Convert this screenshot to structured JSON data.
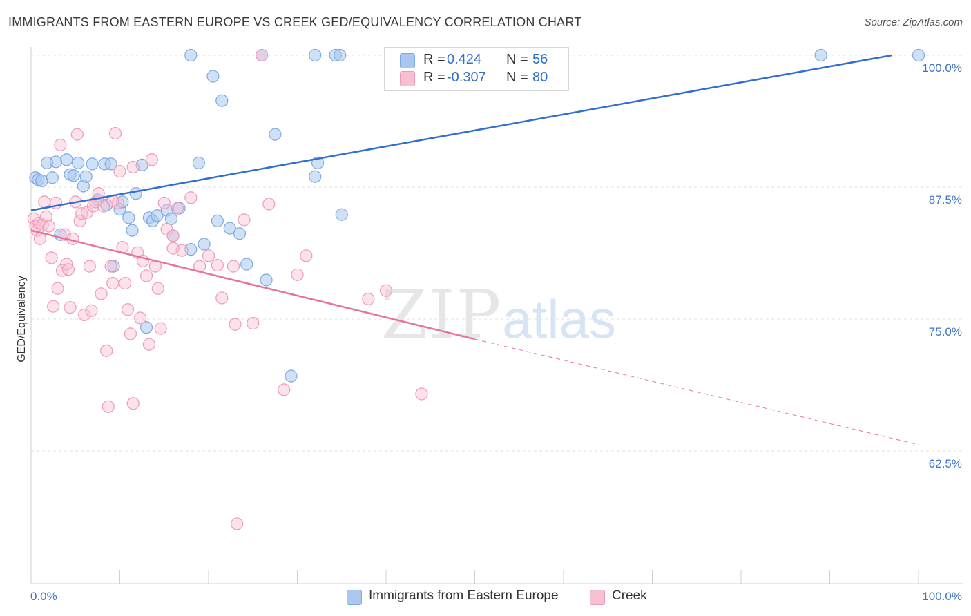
{
  "title": "IMMIGRANTS FROM EASTERN EUROPE VS CREEK GED/EQUIVALENCY CORRELATION CHART",
  "source": "Source: ZipAtlas.com",
  "watermark": {
    "zip": "ZIP",
    "atlas": "atlas"
  },
  "legend": {
    "rows": [
      {
        "r_label": "R =",
        "r_value": "0.424",
        "n_label": "N =",
        "n_value": "56"
      },
      {
        "r_label": "R =",
        "r_value": "-0.307",
        "n_label": "N =",
        "n_value": "80"
      }
    ]
  },
  "bottom_legend": [
    "Immigrants from Eastern Europe",
    "Creek"
  ],
  "colors": {
    "blue_fill": "#aac8ef",
    "blue_stroke": "#7ea9e3",
    "blue_line": "#2f6fd1",
    "pink_fill": "#f6bfd2",
    "pink_stroke": "#ef9ab8",
    "pink_line": "#e7739b",
    "axis_label": "#3d73c9",
    "grid": "#e2e2e2"
  },
  "chart_data": {
    "type": "scatter",
    "title": "IMMIGRANTS FROM EASTERN EUROPE VS CREEK GED/EQUIVALENCY CORRELATION CHART",
    "xlabel": "",
    "ylabel": "GED/Equivalency",
    "xlim": [
      0,
      100
    ],
    "ylim": [
      51.0,
      101.0
    ],
    "x_tick_labels": [
      "0.0%",
      "100.0%"
    ],
    "y_ticks": [
      62.5,
      75.0,
      87.5,
      100.0
    ],
    "y_tick_labels": [
      "62.5%",
      "75.0%",
      "87.5%",
      "100.0%"
    ],
    "grid": "horizontal dashed",
    "legend_position": "top-center",
    "series": [
      {
        "name": "Immigrants from Eastern Europe",
        "color": "#aac8ef",
        "trend": {
          "x": [
            0,
            97
          ],
          "y": [
            85.3,
            100.0
          ],
          "style": "solid"
        },
        "points": [
          [
            0.5,
            88.4
          ],
          [
            0.8,
            88.2
          ],
          [
            1.2,
            88.1
          ],
          [
            1.8,
            89.8
          ],
          [
            2.4,
            88.4
          ],
          [
            2.8,
            89.9
          ],
          [
            3.3,
            83.0
          ],
          [
            4.0,
            90.1
          ],
          [
            4.4,
            88.7
          ],
          [
            4.8,
            88.6
          ],
          [
            5.3,
            89.8
          ],
          [
            5.9,
            87.6
          ],
          [
            6.2,
            88.5
          ],
          [
            6.9,
            89.7
          ],
          [
            7.5,
            86.3
          ],
          [
            8.3,
            89.7
          ],
          [
            8.5,
            85.8
          ],
          [
            9.0,
            89.7
          ],
          [
            9.3,
            80.0
          ],
          [
            10.0,
            85.4
          ],
          [
            10.3,
            86.1
          ],
          [
            11.0,
            84.6
          ],
          [
            11.4,
            83.4
          ],
          [
            11.8,
            86.9
          ],
          [
            12.5,
            89.6
          ],
          [
            13.0,
            74.2
          ],
          [
            13.3,
            84.6
          ],
          [
            13.7,
            84.3
          ],
          [
            14.2,
            84.8
          ],
          [
            15.3,
            85.3
          ],
          [
            15.8,
            84.5
          ],
          [
            16.0,
            82.9
          ],
          [
            16.7,
            85.5
          ],
          [
            18.0,
            81.6
          ],
          [
            18.9,
            89.8
          ],
          [
            19.5,
            82.1
          ],
          [
            21.0,
            84.3
          ],
          [
            22.4,
            83.6
          ],
          [
            23.5,
            83.1
          ],
          [
            24.3,
            80.2
          ],
          [
            26.5,
            78.7
          ],
          [
            27.5,
            92.5
          ],
          [
            29.3,
            69.6
          ],
          [
            32.0,
            88.5
          ],
          [
            32.3,
            89.8
          ],
          [
            35.0,
            84.9
          ],
          [
            18.0,
            100.0
          ],
          [
            20.5,
            98.0
          ],
          [
            21.5,
            95.7
          ],
          [
            26.0,
            100.0
          ],
          [
            32.0,
            100.0
          ],
          [
            34.3,
            100.0
          ],
          [
            34.8,
            100.0
          ],
          [
            50.0,
            100.0
          ],
          [
            89.0,
            100.0
          ],
          [
            100.0,
            100.0
          ]
        ]
      },
      {
        "name": "Creek",
        "color": "#f6bfd2",
        "trend": {
          "x": [
            0,
            50,
            100
          ],
          "y": [
            83.4,
            73.1,
            63.1
          ],
          "solid_until": 50
        },
        "points": [
          [
            0.3,
            84.5
          ],
          [
            0.5,
            83.8
          ],
          [
            0.7,
            83.4
          ],
          [
            0.9,
            84.1
          ],
          [
            1.0,
            82.6
          ],
          [
            1.3,
            83.9
          ],
          [
            1.5,
            86.1
          ],
          [
            1.7,
            84.7
          ],
          [
            2.0,
            83.8
          ],
          [
            2.3,
            80.8
          ],
          [
            2.5,
            76.2
          ],
          [
            2.8,
            86.0
          ],
          [
            3.0,
            77.9
          ],
          [
            3.3,
            91.5
          ],
          [
            3.5,
            79.6
          ],
          [
            3.8,
            83.0
          ],
          [
            4.0,
            80.2
          ],
          [
            4.2,
            79.7
          ],
          [
            4.4,
            76.1
          ],
          [
            4.7,
            82.6
          ],
          [
            5.0,
            86.1
          ],
          [
            5.2,
            92.5
          ],
          [
            5.5,
            84.3
          ],
          [
            5.7,
            85.0
          ],
          [
            6.0,
            75.4
          ],
          [
            6.3,
            85.1
          ],
          [
            6.6,
            80.0
          ],
          [
            6.8,
            75.8
          ],
          [
            7.0,
            85.7
          ],
          [
            7.3,
            86.1
          ],
          [
            7.6,
            86.9
          ],
          [
            7.9,
            77.4
          ],
          [
            8.2,
            85.7
          ],
          [
            8.5,
            72.0
          ],
          [
            8.7,
            66.7
          ],
          [
            9.0,
            80.0
          ],
          [
            9.2,
            78.4
          ],
          [
            9.5,
            92.6
          ],
          [
            9.8,
            86.0
          ],
          [
            10.0,
            89.0
          ],
          [
            10.3,
            81.8
          ],
          [
            10.6,
            78.4
          ],
          [
            10.9,
            75.9
          ],
          [
            11.2,
            73.6
          ],
          [
            11.5,
            67.0
          ],
          [
            12.0,
            81.3
          ],
          [
            12.3,
            75.1
          ],
          [
            12.6,
            80.5
          ],
          [
            13.0,
            79.1
          ],
          [
            13.3,
            72.6
          ],
          [
            13.6,
            90.1
          ],
          [
            14.0,
            80.0
          ],
          [
            14.3,
            77.9
          ],
          [
            14.6,
            74.1
          ],
          [
            15.0,
            86.0
          ],
          [
            15.3,
            83.5
          ],
          [
            16.0,
            82.9
          ],
          [
            16.5,
            85.5
          ],
          [
            17.0,
            81.5
          ],
          [
            18.0,
            86.5
          ],
          [
            19.0,
            80.0
          ],
          [
            20.0,
            81.0
          ],
          [
            21.0,
            80.1
          ],
          [
            21.5,
            77.0
          ],
          [
            22.8,
            80.0
          ],
          [
            23.0,
            74.5
          ],
          [
            23.2,
            55.6
          ],
          [
            24.0,
            84.4
          ],
          [
            25.0,
            74.6
          ],
          [
            26.8,
            85.9
          ],
          [
            28.5,
            68.3
          ],
          [
            30.0,
            79.2
          ],
          [
            31.0,
            81.0
          ],
          [
            38.0,
            76.9
          ],
          [
            40.0,
            77.7
          ],
          [
            44.0,
            67.9
          ],
          [
            26.0,
            100.0
          ],
          [
            9.2,
            86.2
          ],
          [
            11.5,
            89.4
          ],
          [
            16.0,
            81.7
          ]
        ]
      }
    ]
  }
}
